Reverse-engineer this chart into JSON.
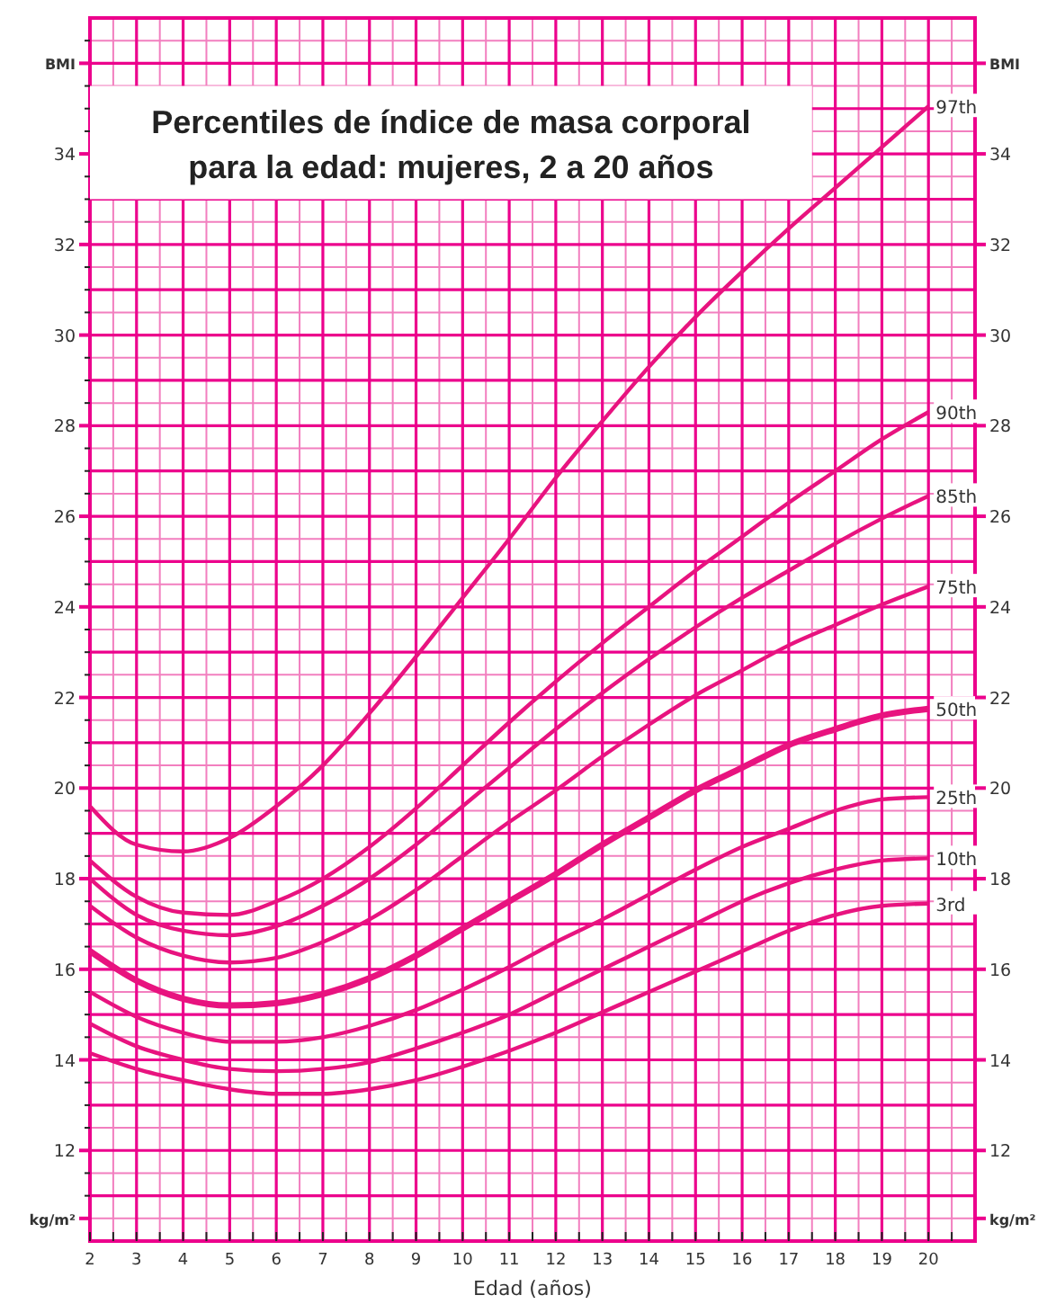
{
  "chart_data": {
    "type": "line",
    "title": "Percentiles de índice de masa corporal para la edad: mujeres, 2 a 20 años",
    "xlabel": "Edad (años)",
    "x": [
      2,
      3,
      4,
      5,
      6,
      7,
      8,
      9,
      10,
      11,
      12,
      13,
      14,
      15,
      16,
      17,
      18,
      19,
      20
    ],
    "xlim": [
      2,
      21
    ],
    "xticks": [
      2,
      {
        "value": 2.5,
        "label": null
      },
      3,
      {
        "value": 3.5,
        "label": null
      },
      4,
      {
        "value": 4.5,
        "label": null
      },
      5,
      {
        "value": 5.5,
        "label": null
      },
      6,
      {
        "value": 6.5,
        "label": null
      },
      7,
      {
        "value": 7.5,
        "label": null
      },
      8,
      {
        "value": 8.5,
        "label": null
      },
      9,
      {
        "value": 9.5,
        "label": null
      },
      10,
      {
        "value": 10.5,
        "label": null
      },
      11,
      {
        "value": 11.5,
        "label": null
      },
      12,
      {
        "value": 12.5,
        "label": null
      },
      13,
      {
        "value": 13.5,
        "label": null
      },
      14,
      {
        "value": 14.5,
        "label": null
      },
      15,
      {
        "value": 15.5,
        "label": null
      },
      16,
      {
        "value": 16.5,
        "label": null
      },
      17,
      {
        "value": 17.5,
        "label": null
      },
      18,
      {
        "value": 18.5,
        "label": null
      },
      19,
      {
        "value": 19.5,
        "label": null
      },
      20,
      {
        "value": 20.5,
        "label": null
      }
    ],
    "ylim": [
      10,
      37
    ],
    "yticks": [
      {
        "value": 10.5,
        "label": "kg/m²"
      },
      {
        "value": 11,
        "label": null
      },
      {
        "value": 11.5,
        "label": null
      },
      12,
      {
        "value": 12.5,
        "label": null
      },
      {
        "value": 13,
        "label": null
      },
      {
        "value": 13.5,
        "label": null
      },
      14,
      {
        "value": 14.5,
        "label": null
      },
      {
        "value": 15,
        "label": null
      },
      {
        "value": 15.5,
        "label": null
      },
      16,
      {
        "value": 16.5,
        "label": null
      },
      {
        "value": 17,
        "label": null
      },
      {
        "value": 17.5,
        "label": null
      },
      18,
      {
        "value": 18.5,
        "label": null
      },
      {
        "value": 19,
        "label": null
      },
      {
        "value": 19.5,
        "label": null
      },
      20,
      {
        "value": 20.5,
        "label": null
      },
      {
        "value": 21,
        "label": null
      },
      {
        "value": 21.5,
        "label": null
      },
      22,
      {
        "value": 22.5,
        "label": null
      },
      {
        "value": 23,
        "label": null
      },
      {
        "value": 23.5,
        "label": null
      },
      24,
      {
        "value": 24.5,
        "label": null
      },
      {
        "value": 25,
        "label": null
      },
      {
        "value": 25.5,
        "label": null
      },
      26,
      {
        "value": 26.5,
        "label": null
      },
      {
        "value": 27,
        "label": null
      },
      {
        "value": 27.5,
        "label": null
      },
      28,
      {
        "value": 28.5,
        "label": null
      },
      {
        "value": 29,
        "label": null
      },
      {
        "value": 29.5,
        "label": null
      },
      30,
      {
        "value": 30.5,
        "label": null
      },
      {
        "value": 31,
        "label": null
      },
      {
        "value": 31.5,
        "label": null
      },
      32,
      {
        "value": 32.5,
        "label": null
      },
      {
        "value": 33,
        "label": null
      },
      {
        "value": 33.5,
        "label": null
      },
      34,
      {
        "value": 34.5,
        "label": null
      },
      {
        "value": 35,
        "label": null
      },
      {
        "value": 35.5,
        "label": null
      },
      {
        "value": 36,
        "label": "BMI"
      },
      {
        "value": 36.5,
        "label": null
      }
    ],
    "y2lim": [
      10,
      37
    ],
    "y2ticks": [
      {
        "value": 10.5,
        "label": "kg/m²"
      },
      12,
      14,
      16,
      18,
      20,
      22,
      24,
      26,
      28,
      30,
      32,
      34,
      {
        "value": 36,
        "label": "BMI"
      }
    ],
    "grid": true,
    "marker": "none",
    "line_style": "solid",
    "series": [
      {
        "name": "97th",
        "color": "#e8137f",
        "values": [
          19.6,
          18.75,
          18.6,
          18.9,
          19.6,
          20.5,
          21.65,
          22.9,
          24.2,
          25.5,
          26.85,
          28.1,
          29.3,
          30.4,
          31.4,
          32.35,
          33.25,
          34.15,
          35.05
        ]
      },
      {
        "name": "90th",
        "color": "#e8137f",
        "values": [
          18.4,
          17.6,
          17.25,
          17.2,
          17.5,
          18.0,
          18.7,
          19.55,
          20.5,
          21.45,
          22.35,
          23.2,
          24.0,
          24.8,
          25.55,
          26.3,
          27.0,
          27.7,
          28.3
        ]
      },
      {
        "name": "85th",
        "color": "#e8137f",
        "values": [
          18.0,
          17.2,
          16.85,
          16.75,
          16.95,
          17.4,
          18.0,
          18.75,
          19.6,
          20.45,
          21.3,
          22.1,
          22.85,
          23.55,
          24.2,
          24.8,
          25.4,
          25.95,
          26.45
        ]
      },
      {
        "name": "75th",
        "color": "#e8137f",
        "values": [
          17.4,
          16.7,
          16.3,
          16.15,
          16.25,
          16.6,
          17.1,
          17.75,
          18.5,
          19.25,
          19.95,
          20.7,
          21.4,
          22.05,
          22.6,
          23.15,
          23.6,
          24.05,
          24.45
        ]
      },
      {
        "name": "50th",
        "color": "#e8137f",
        "values": [
          16.4,
          15.75,
          15.35,
          15.2,
          15.25,
          15.45,
          15.8,
          16.3,
          16.9,
          17.5,
          18.1,
          18.75,
          19.35,
          19.95,
          20.45,
          20.95,
          21.3,
          21.6,
          21.75
        ]
      },
      {
        "name": "25th",
        "color": "#e8137f",
        "values": [
          15.5,
          14.95,
          14.6,
          14.4,
          14.4,
          14.5,
          14.75,
          15.1,
          15.55,
          16.05,
          16.6,
          17.1,
          17.65,
          18.2,
          18.7,
          19.1,
          19.5,
          19.75,
          19.8
        ]
      },
      {
        "name": "10th",
        "color": "#e8137f",
        "values": [
          14.8,
          14.3,
          14.0,
          13.8,
          13.75,
          13.8,
          13.95,
          14.25,
          14.6,
          15.0,
          15.5,
          16.0,
          16.5,
          17.0,
          17.5,
          17.9,
          18.2,
          18.4,
          18.45
        ]
      },
      {
        "name": "3rd",
        "color": "#e8137f",
        "values": [
          14.15,
          13.8,
          13.55,
          13.35,
          13.25,
          13.25,
          13.35,
          13.55,
          13.85,
          14.2,
          14.6,
          15.05,
          15.5,
          15.95,
          16.4,
          16.85,
          17.2,
          17.4,
          17.45
        ]
      }
    ]
  }
}
